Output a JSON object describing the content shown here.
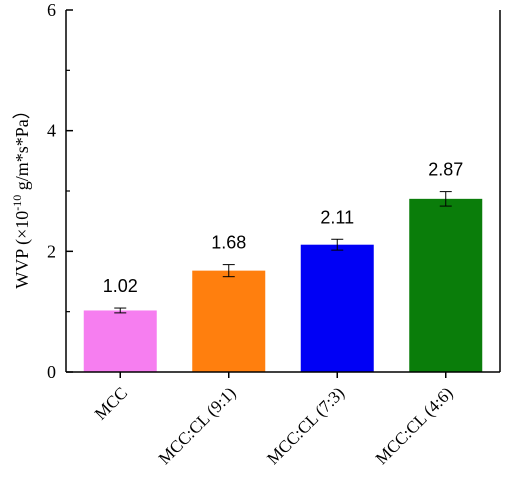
{
  "chart_data": {
    "type": "bar",
    "categories": [
      "MCC",
      "MCC:CL (9:1)",
      "MCC:CL (7:3)",
      "MCC:CL (4:6)"
    ],
    "values": [
      1.02,
      1.68,
      2.11,
      2.87
    ],
    "errors": [
      0.04,
      0.1,
      0.09,
      0.12
    ],
    "data_labels": [
      "1.02",
      "1.68",
      "2.11",
      "2.87"
    ],
    "colors": [
      "#f67ef0",
      "#ff7f0e",
      "#0000f5",
      "#0a7d0a"
    ],
    "title": "",
    "xlabel": "",
    "ylabel": {
      "prefix": "WVP (×10",
      "exponent": "-10",
      "suffix": " g/m*s*Pa）"
    },
    "ylim": [
      0,
      6
    ],
    "yticks": [
      0,
      2,
      4,
      6
    ],
    "ytick_labels": [
      "0",
      "2",
      "4",
      "6"
    ],
    "grid": false,
    "legend": "none"
  }
}
